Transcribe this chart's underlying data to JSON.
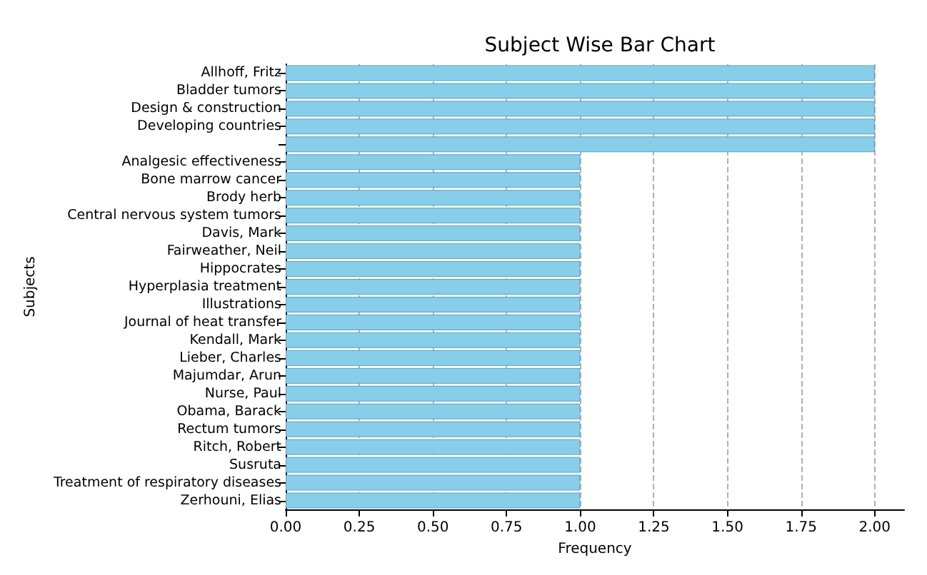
{
  "chart_data": {
    "type": "bar",
    "orientation": "horizontal",
    "title": "Subject Wise Bar Chart",
    "xlabel": "Frequency",
    "ylabel": "Subjects",
    "categories": [
      "Allhoff, Fritz",
      "Bladder tumors",
      "Design & construction",
      "Developing countries",
      null,
      "Analgesic effectiveness",
      "Bone marrow cancer",
      "Brody herb",
      "Central nervous system tumors",
      "Davis, Mark",
      "Fairweather, Neil",
      "Hippocrates",
      "Hyperplasia treatment",
      "Illustrations",
      "Journal of heat transfer",
      "Kendall, Mark",
      "Lieber, Charles",
      "Majumdar, Arun",
      "Nurse, Paul",
      "Obama, Barack",
      "Rectum tumors",
      "Ritch, Robert",
      "Susruta",
      "Treatment of respiratory diseases",
      "Zerhouni, Elias"
    ],
    "values": [
      2,
      2,
      2,
      2,
      2,
      1,
      1,
      1,
      1,
      1,
      1,
      1,
      1,
      1,
      1,
      1,
      1,
      1,
      1,
      1,
      1,
      1,
      1,
      1,
      1
    ],
    "color": "#87ceeb",
    "xlim": [
      0,
      2.1
    ],
    "xticks": [
      {
        "value": 0,
        "label": "0.00"
      },
      {
        "value": 0.25,
        "label": "0.25"
      },
      {
        "value": 0.5,
        "label": "0.50"
      },
      {
        "value": 0.75,
        "label": "0.75"
      },
      {
        "value": 1,
        "label": "1.00"
      },
      {
        "value": 1.25,
        "label": "1.25"
      },
      {
        "value": 1.5,
        "label": "1.50"
      },
      {
        "value": 1.75,
        "label": "1.75"
      },
      {
        "value": 2,
        "label": "2.00"
      }
    ],
    "grid": "x",
    "line_style": "dashed"
  }
}
